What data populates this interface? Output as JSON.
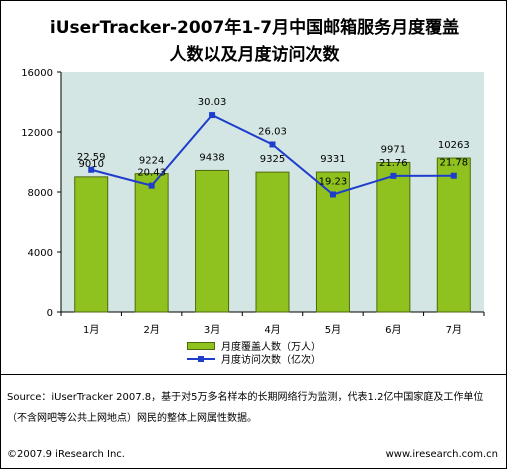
{
  "title_line1": "iUserTracker-2007年1-7月中国邮箱服务月度覆盖",
  "title_line2": "人数以及月度访问次数",
  "chart_data": {
    "type": "bar",
    "categories": [
      "1月",
      "2月",
      "3月",
      "4月",
      "5月",
      "6月",
      "7月"
    ],
    "series": [
      {
        "name": "月度覆盖人数（万人）",
        "type": "bar",
        "values": [
          9010,
          9224,
          9438,
          9325,
          9331,
          9971,
          10263
        ],
        "labels": [
          "9010",
          "9224",
          "9438",
          "9325",
          "9331",
          "9971",
          "10263"
        ]
      },
      {
        "name": "月度访问次数（亿次）",
        "type": "line",
        "values": [
          22.59,
          20.43,
          30.03,
          26.03,
          19.23,
          21.76,
          21.78
        ],
        "labels": [
          "22.59",
          "20.43",
          "30.03",
          "26.03",
          "19.23",
          "21.76",
          "21.78"
        ]
      }
    ],
    "yticks": [
      "0",
      "4000",
      "8000",
      "12000",
      "16000"
    ],
    "ylim": [
      0,
      16000
    ],
    "grid": false,
    "legend_position": "bottom",
    "colors": {
      "bar": "#8fc21e",
      "bar_edge": "#4e6a0d",
      "line": "#1f3dcc",
      "plot_bg": "#d4e6e4"
    }
  },
  "source_text": "Source：iUserTracker 2007.8，基于对5万多名样本的长期网络行为监测，代表1.2亿中国家庭及工作单位（不含网吧等公共上网地点）网民的整体上网属性数据。",
  "copyright": "©2007.9 iResearch Inc.",
  "website": "www.iresearch.com.cn"
}
